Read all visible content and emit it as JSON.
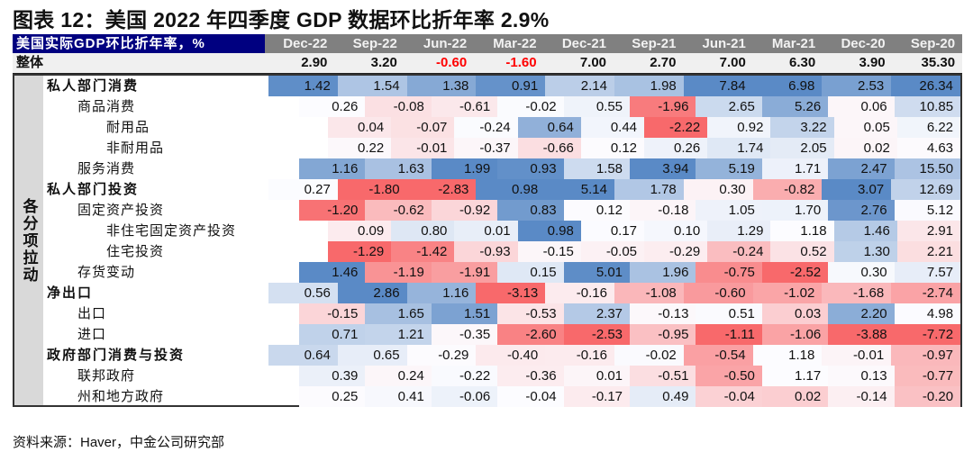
{
  "title": "图表 12：美国 2022 年四季度 GDP 数据环比折年率 2.9%",
  "source": "资料来源：Haver，中金公司研究部",
  "colors": {
    "header_bg": "#000080",
    "date_bg": "#808080",
    "min": "#F8696B",
    "mid": "#FCFCFF",
    "max": "#5A8AC6",
    "negative_text": "#FF0000"
  },
  "chart_data": {
    "type": "heatmap",
    "title": "图表 12：美国 2022 年四季度 GDP 数据环比折年率 2.9%",
    "corner_label": "美国实际GDP环比折年率，%",
    "side_label": "各分项拉动",
    "columns": [
      "Dec-22",
      "Sep-22",
      "Jun-22",
      "Mar-22",
      "Dec-21",
      "Sep-21",
      "Jun-21",
      "Mar-21",
      "Dec-20",
      "Sep-20"
    ],
    "overall": {
      "label": "整体",
      "values": [
        "2.90",
        "3.20",
        "-0.60",
        "-1.60",
        "7.00",
        "2.70",
        "7.00",
        "6.30",
        "3.90",
        "35.30"
      ]
    },
    "rows": [
      {
        "label": "私人部门消费",
        "level": 0,
        "values": [
          "1.42",
          "1.54",
          "1.38",
          "0.91",
          "2.14",
          "1.98",
          "7.84",
          "6.98",
          "2.53",
          "26.34"
        ]
      },
      {
        "label": "商品消费",
        "level": 1,
        "values": [
          "0.26",
          "-0.08",
          "-0.61",
          "-0.02",
          "0.55",
          "-1.96",
          "2.65",
          "5.26",
          "0.06",
          "10.85"
        ]
      },
      {
        "label": "耐用品",
        "level": 2,
        "values": [
          "0.04",
          "-0.07",
          "-0.24",
          "0.64",
          "0.44",
          "-2.22",
          "0.92",
          "3.22",
          "0.05",
          "6.22"
        ]
      },
      {
        "label": "非耐用品",
        "level": 2,
        "values": [
          "0.22",
          "-0.01",
          "-0.37",
          "-0.66",
          "0.12",
          "0.26",
          "1.74",
          "2.05",
          "0.02",
          "4.63"
        ]
      },
      {
        "label": "服务消费",
        "level": 1,
        "values": [
          "1.16",
          "1.63",
          "1.99",
          "0.93",
          "1.58",
          "3.94",
          "5.19",
          "1.71",
          "2.47",
          "15.50"
        ]
      },
      {
        "label": "私人部门投资",
        "level": 0,
        "values": [
          "0.27",
          "-1.80",
          "-2.83",
          "0.98",
          "5.14",
          "1.78",
          "0.30",
          "-0.82",
          "3.07",
          "12.69"
        ]
      },
      {
        "label": "固定资产投资",
        "level": 1,
        "values": [
          "-1.20",
          "-0.62",
          "-0.92",
          "0.83",
          "0.12",
          "-0.18",
          "1.05",
          "1.70",
          "2.76",
          "5.12"
        ]
      },
      {
        "label": "非住宅固定资产投资",
        "level": 2,
        "values": [
          "0.09",
          "0.80",
          "0.01",
          "0.98",
          "0.17",
          "0.10",
          "1.29",
          "1.18",
          "1.46",
          "2.91"
        ]
      },
      {
        "label": "住宅投资",
        "level": 2,
        "values": [
          "-1.29",
          "-1.42",
          "-0.93",
          "-0.15",
          "-0.05",
          "-0.29",
          "-0.24",
          "0.52",
          "1.30",
          "2.21"
        ]
      },
      {
        "label": "存货变动",
        "level": 1,
        "values": [
          "1.46",
          "-1.19",
          "-1.91",
          "0.15",
          "5.01",
          "1.96",
          "-0.75",
          "-2.52",
          "0.30",
          "7.57"
        ]
      },
      {
        "label": "净出口",
        "level": 0,
        "values": [
          "0.56",
          "2.86",
          "1.16",
          "-3.13",
          "-0.16",
          "-1.08",
          "-0.60",
          "-1.02",
          "-1.68",
          "-2.74"
        ]
      },
      {
        "label": "出口",
        "level": 1,
        "values": [
          "-0.15",
          "1.65",
          "1.51",
          "-0.53",
          "2.37",
          "-0.13",
          "0.51",
          "0.03",
          "2.20",
          "4.98"
        ]
      },
      {
        "label": "进口",
        "level": 1,
        "values": [
          "0.71",
          "1.21",
          "-0.35",
          "-2.60",
          "-2.53",
          "-0.95",
          "-1.11",
          "-1.06",
          "-3.88",
          "-7.72"
        ]
      },
      {
        "label": "政府部门消费与投资",
        "level": 0,
        "values": [
          "0.64",
          "0.65",
          "-0.29",
          "-0.40",
          "-0.16",
          "-0.02",
          "-0.54",
          "1.18",
          "-0.01",
          "-0.97"
        ]
      },
      {
        "label": "联邦政府",
        "level": 1,
        "values": [
          "0.39",
          "0.24",
          "-0.22",
          "-0.36",
          "0.01",
          "-0.51",
          "-0.50",
          "1.17",
          "0.13",
          "-0.77"
        ]
      },
      {
        "label": "州和地方政府",
        "level": 1,
        "values": [
          "0.25",
          "0.41",
          "-0.06",
          "-0.04",
          "-0.17",
          "0.49",
          "-0.04",
          "0.02",
          "-0.14",
          "-0.20"
        ]
      }
    ]
  }
}
